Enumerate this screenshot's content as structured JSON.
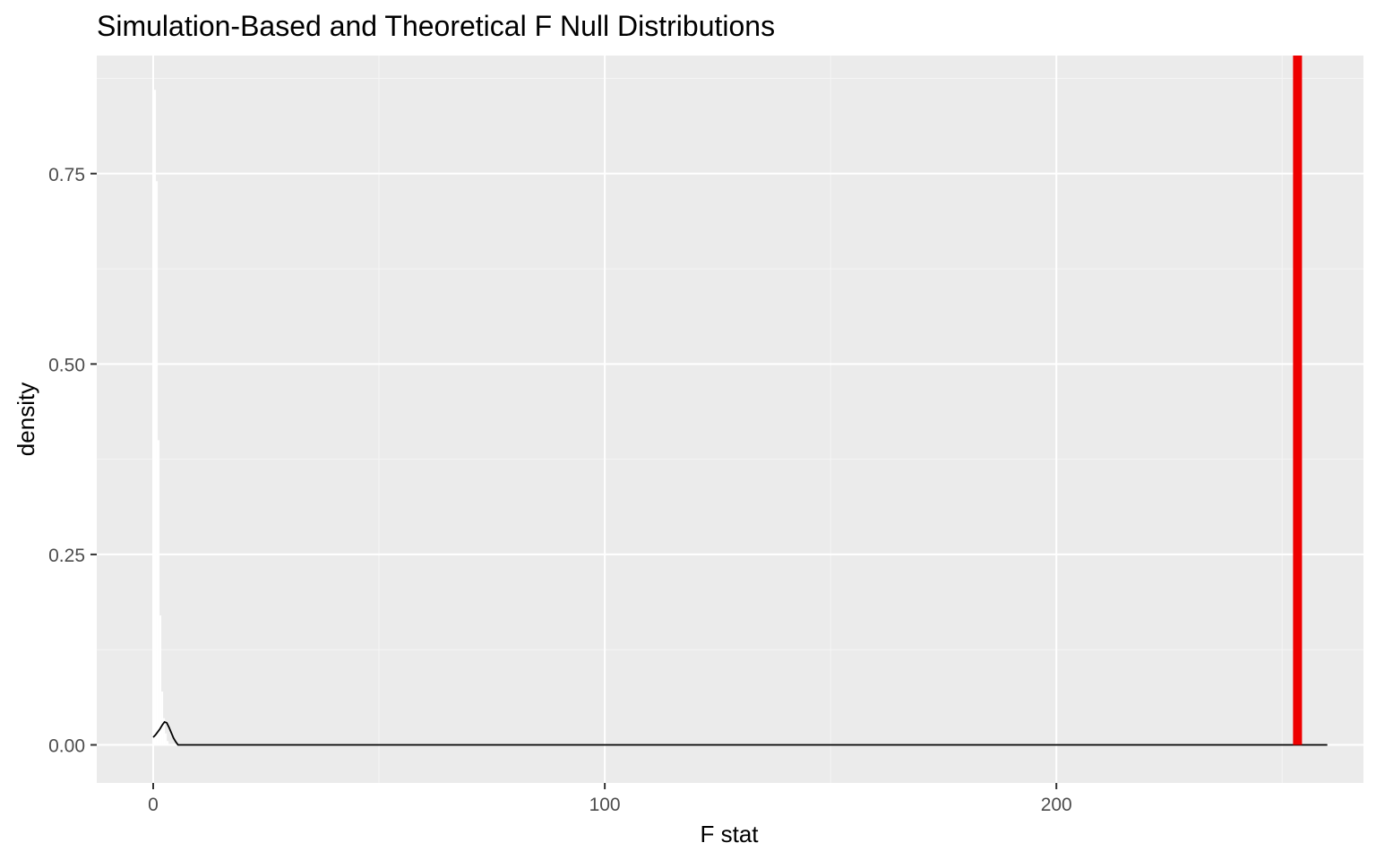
{
  "chart_data": {
    "type": "area",
    "title": "Simulation-Based and Theoretical F Null Distributions",
    "xlabel": "F stat",
    "ylabel": "density",
    "xlim": [
      -12.5,
      268
    ],
    "ylim": [
      -0.05,
      0.905
    ],
    "x_ticks": [
      0,
      100,
      200
    ],
    "x_tick_labels": [
      "0",
      "100",
      "200"
    ],
    "x_minor_ticks": [
      50,
      150,
      250
    ],
    "y_ticks": [
      0,
      0.25,
      0.5,
      0.75
    ],
    "y_tick_labels": [
      "0.00",
      "0.25",
      "0.50",
      "0.75"
    ],
    "y_minor_ticks": [
      0.125,
      0.375,
      0.625,
      0.875
    ],
    "grid": true,
    "legend": "none",
    "series": [
      {
        "kind": "histogram",
        "fill": "#ffffff",
        "x": [
          0.4,
          0.8,
          1.2,
          1.6,
          2.0,
          2.4,
          2.8,
          3.2
        ],
        "values": [
          0.86,
          0.74,
          0.4,
          0.17,
          0.07,
          0.035,
          0.015,
          0.005
        ]
      },
      {
        "kind": "density",
        "color": "#000000",
        "x": [
          0,
          0.5,
          1,
          1.5,
          2,
          2.5,
          3,
          3.5,
          4,
          4.5,
          5,
          5.5,
          260
        ],
        "values": [
          0.01,
          0.013,
          0.017,
          0.021,
          0.026,
          0.03,
          0.029,
          0.023,
          0.016,
          0.009,
          0.004,
          0.0,
          0.0
        ]
      },
      {
        "kind": "vline",
        "color": "#ee0000",
        "x": 253.4
      }
    ],
    "colors": {
      "panel_background": "#ebebeb",
      "grid_major": "#ffffff",
      "grid_minor": "#f5f5f5",
      "observed_line": "#ee0000"
    }
  }
}
